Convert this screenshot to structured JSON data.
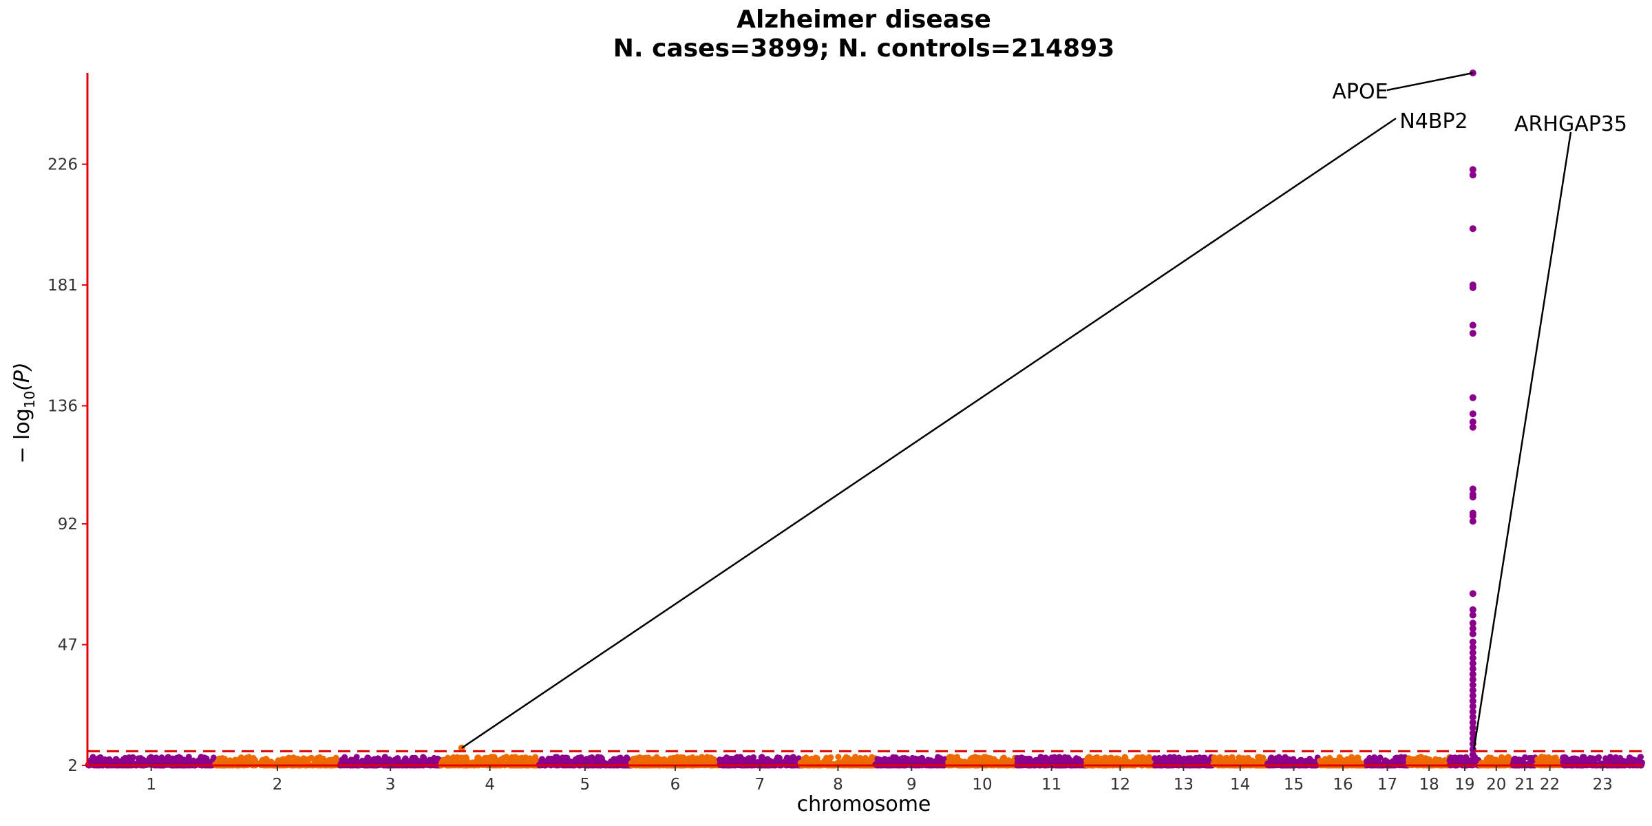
{
  "chart_data": {
    "type": "scatter",
    "title": "Alzheimer disease",
    "subtitle": "N. cases=3899; N. controls=214893",
    "xlabel": "chromosome",
    "ylabel_prefix": "− log",
    "ylabel_sub": "10",
    "ylabel_suffix": "(P)",
    "yticks": [
      2,
      47,
      92,
      136,
      181,
      226
    ],
    "ylim": [
      2,
      260
    ],
    "significance_threshold": 7.3,
    "chromosomes": [
      "1",
      "2",
      "3",
      "4",
      "5",
      "6",
      "7",
      "8",
      "9",
      "10",
      "11",
      "12",
      "13",
      "14",
      "15",
      "16",
      "17",
      "18",
      "19",
      "20",
      "21",
      "22",
      "23"
    ],
    "chromosome_sizes": [
      249,
      243,
      198,
      190,
      181,
      171,
      159,
      146,
      141,
      135,
      135,
      133,
      114,
      107,
      102,
      90,
      83,
      80,
      59,
      64,
      47,
      51,
      155
    ],
    "colors": {
      "odd": "#8B008B",
      "even": "#EE6A00",
      "axis": "#E00000",
      "threshold": "#E00000"
    },
    "peak_points": {
      "chromosome": "19",
      "position_mb": 45.4,
      "values": [
        260,
        224,
        222,
        202,
        181,
        180,
        166,
        163,
        139,
        133,
        130,
        128,
        105,
        103,
        102,
        96,
        95,
        93,
        66,
        60,
        58,
        55,
        53,
        51,
        48,
        46,
        44,
        42,
        40,
        38,
        36,
        34,
        32,
        30,
        28,
        26,
        24,
        22,
        20,
        18,
        16,
        14,
        12,
        10,
        8,
        6,
        4
      ]
    },
    "annotations": [
      {
        "label": "APOE",
        "chromosome": "19",
        "position_mb": 45.4,
        "value": 260
      },
      {
        "label": "N4BP2",
        "chromosome": "4",
        "position_mb": 40.1,
        "value": 8.5
      },
      {
        "label": "ARHGAP35",
        "chromosome": "19",
        "position_mb": 47.4,
        "value": 8
      }
    ]
  }
}
